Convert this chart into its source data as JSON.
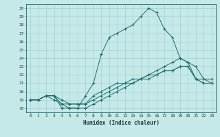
{
  "title": "",
  "xlabel": "Humidex (Indice chaleur)",
  "ylabel": "",
  "bg_color": "#c5e8e8",
  "grid_color": "#a8d0d0",
  "line_color": "#1a6b6b",
  "xlim": [
    -0.5,
    23.5
  ],
  "ylim": [
    17.5,
    30.5
  ],
  "xticks": [
    0,
    1,
    2,
    3,
    4,
    5,
    6,
    7,
    8,
    9,
    10,
    11,
    12,
    13,
    14,
    15,
    16,
    17,
    18,
    19,
    20,
    21,
    22,
    23
  ],
  "yticks": [
    18,
    19,
    20,
    21,
    22,
    23,
    24,
    25,
    26,
    27,
    28,
    29,
    30
  ],
  "line1_x": [
    0,
    1,
    2,
    3,
    4,
    5,
    6,
    7,
    8,
    9,
    10,
    11,
    12,
    13,
    14,
    15,
    16,
    17,
    18,
    19,
    20,
    21,
    22,
    23
  ],
  "line1_y": [
    19.0,
    19.0,
    19.5,
    19.5,
    18.0,
    18.0,
    18.0,
    19.5,
    21.0,
    24.5,
    26.5,
    27.0,
    27.5,
    28.0,
    29.0,
    30.0,
    29.5,
    27.5,
    26.5,
    24.0,
    23.5,
    23.0,
    21.5,
    21.5
  ],
  "line2_x": [
    0,
    1,
    2,
    3,
    4,
    5,
    6,
    7,
    8,
    9,
    10,
    11,
    12,
    13,
    14,
    15,
    16,
    17,
    18,
    19,
    20,
    21,
    22,
    23
  ],
  "line2_y": [
    19.0,
    19.0,
    19.5,
    19.5,
    19.0,
    18.5,
    18.5,
    18.5,
    19.5,
    20.0,
    20.5,
    21.0,
    21.0,
    21.5,
    21.5,
    21.5,
    22.0,
    22.5,
    22.5,
    23.0,
    23.0,
    21.5,
    21.0,
    21.0
  ],
  "line3_x": [
    0,
    1,
    2,
    3,
    4,
    5,
    6,
    7,
    8,
    9,
    10,
    11,
    12,
    13,
    14,
    15,
    16,
    17,
    18,
    19,
    20,
    21,
    22,
    23
  ],
  "line3_y": [
    19.0,
    19.0,
    19.5,
    19.5,
    18.5,
    18.5,
    18.5,
    18.5,
    19.0,
    19.5,
    20.0,
    20.5,
    21.0,
    21.0,
    21.5,
    22.0,
    22.0,
    22.5,
    22.5,
    23.0,
    23.0,
    21.5,
    21.5,
    21.0
  ],
  "line4_x": [
    0,
    1,
    2,
    3,
    4,
    5,
    6,
    7,
    8,
    9,
    10,
    11,
    12,
    13,
    14,
    15,
    16,
    17,
    18,
    19,
    20,
    21,
    22,
    23
  ],
  "line4_y": [
    19.0,
    19.0,
    19.5,
    19.0,
    18.5,
    18.0,
    18.0,
    18.0,
    18.5,
    19.0,
    19.5,
    20.0,
    20.5,
    21.0,
    21.5,
    22.0,
    22.5,
    23.0,
    23.5,
    24.0,
    23.5,
    21.5,
    21.0,
    21.0
  ]
}
